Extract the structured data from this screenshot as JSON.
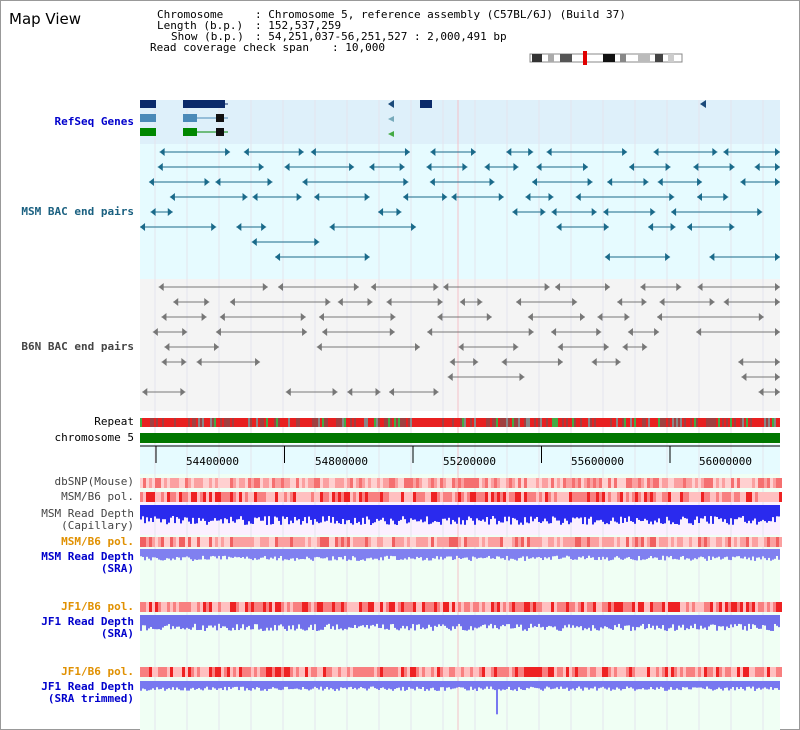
{
  "app_title": "Map View",
  "info": {
    "chromosome_key": "Chromosome",
    "chromosome_val": ": Chromosome 5, reference assembly (C57BL/6J) (Build 37)",
    "length_key": "Length (b.p.)",
    "length_val": ": 152,537,259",
    "show_key": "Show (b.p.)",
    "show_val": ": 54,251,037-56,251,527 : 2,000,491 bp",
    "span_key": "Read coverage check span",
    "span_val": ": 10,000"
  },
  "labels": {
    "refseq": "RefSeq Genes",
    "msm_bac": "MSM BAC end pairs",
    "b6n_bac": "B6N BAC end pairs",
    "repeat": "Repeat",
    "chromosome": "chromosome 5",
    "dbsnp": "dbSNP(Mouse)",
    "msm_pol": "MSM/B6 pol.",
    "msm_depth_cap_1": "MSM Read Depth",
    "msm_depth_cap_2": "(Capillary)",
    "msm_pol_2": "MSM/B6 pol.",
    "msm_depth_sra_1": "MSM Read Depth",
    "msm_depth_sra_2": "(SRA)",
    "jf1_pol": "JF1/B6 pol.",
    "jf1_depth_sra_1": "JF1 Read Depth",
    "jf1_depth_sra_2": "(SRA)",
    "jf1_pol_2": "JF1/B6 pol.",
    "jf1_depth_trim_1": "JF1 Read Depth",
    "jf1_depth_trim_2": "(SRA trimmed)"
  },
  "axis_ticks": [
    "54400000",
    "54800000",
    "55200000",
    "55600000",
    "56000000"
  ],
  "colors": {
    "refseq_bg": "#def0fa",
    "msm_bac_bg": "#e6fbff",
    "b6n_bac_bg": "#f4f4f4",
    "chrom_green": "#007700",
    "depth_blue": "#2a2aee",
    "depth_light": "#8080f0",
    "pol_red": "#ee2222"
  }
}
